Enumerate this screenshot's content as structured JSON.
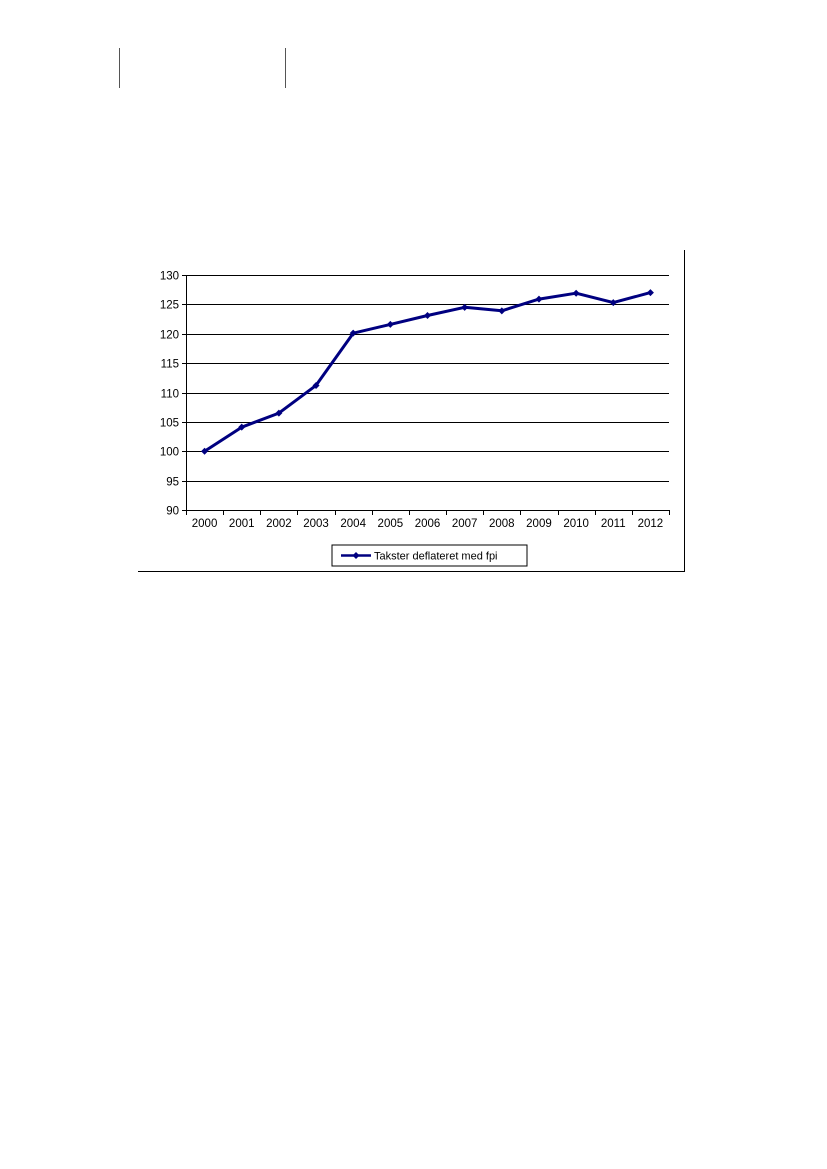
{
  "chart_data": {
    "type": "line",
    "categories": [
      "2000",
      "2001",
      "2002",
      "2003",
      "2004",
      "2005",
      "2006",
      "2007",
      "2008",
      "2009",
      "2010",
      "2011",
      "2012"
    ],
    "series": [
      {
        "name": "Takster deflateret med fpi",
        "values": [
          100,
          104.1,
          106.5,
          111.2,
          120.1,
          121.6,
          123.1,
          124.5,
          123.9,
          125.9,
          126.9,
          125.3,
          127.0
        ],
        "color": "#000080"
      }
    ],
    "ylim": [
      90,
      130
    ],
    "yticks": [
      90,
      95,
      100,
      105,
      110,
      115,
      120,
      125,
      130
    ],
    "grid": true,
    "legend_position": "bottom"
  }
}
